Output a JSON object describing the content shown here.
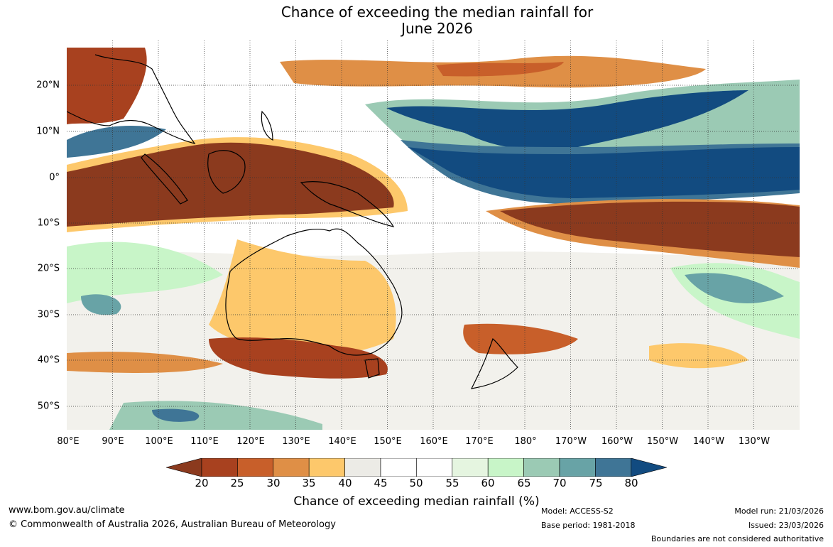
{
  "title_line1": "Chance of exceeding the median rainfall for",
  "title_line2": "June 2026",
  "map": {
    "lon_labels": [
      "80°E",
      "90°E",
      "100°E",
      "110°E",
      "120°E",
      "130°E",
      "140°E",
      "150°E",
      "160°E",
      "170°E",
      "180°",
      "170°W",
      "160°W",
      "150°W",
      "140°W",
      "130°W"
    ],
    "lat_labels": [
      "20°N",
      "10°N",
      "0°",
      "10°S",
      "20°S",
      "30°S",
      "40°S",
      "50°S"
    ]
  },
  "colorbar": {
    "ticks": [
      "20",
      "25",
      "30",
      "35",
      "40",
      "45",
      "50",
      "55",
      "60",
      "65",
      "70",
      "75",
      "80"
    ],
    "colors": [
      "#8b3a1e",
      "#a8411f",
      "#c85f2a",
      "#df8f46",
      "#fdc86b",
      "#ecebe6",
      "#ffffff",
      "#ffffff",
      "#e5f5e0",
      "#c8f5c8",
      "#9bcab4",
      "#68a3a6",
      "#3f7596",
      "#124b80"
    ],
    "label": "Chance of exceeding median rainfall (%)"
  },
  "footer": {
    "url": "www.bom.gov.au/climate",
    "copyright": "© Commonwealth of Australia 2026, Australian Bureau of Meteorology",
    "model": "Model: ACCESS-S2",
    "base_period": "Base period: 1981-2018",
    "model_run": "Model run: 21/03/2026",
    "issued": "Issued: 23/03/2026",
    "disclaimer": "Boundaries are not considered authoritative"
  }
}
